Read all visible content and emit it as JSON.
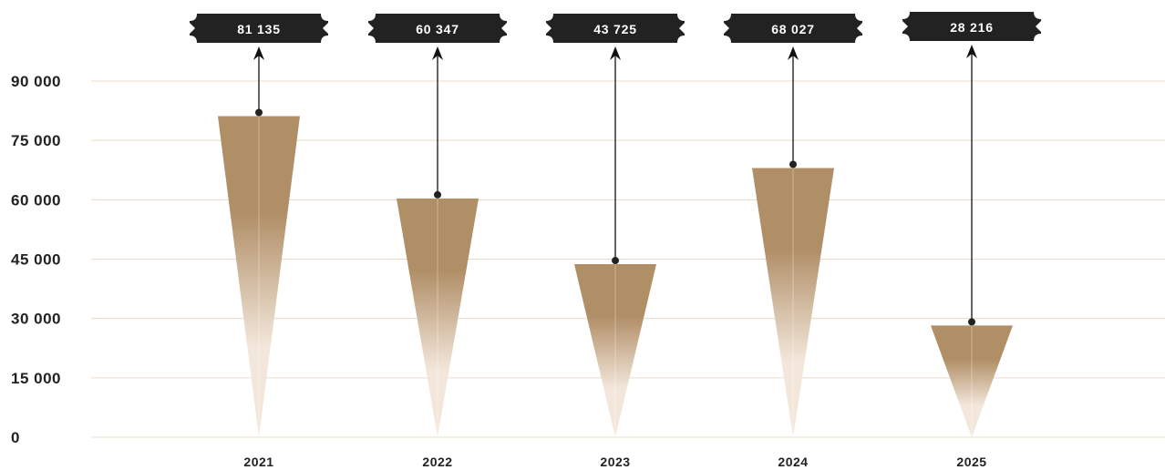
{
  "chart_data": {
    "type": "bar",
    "categories": [
      "2021",
      "2022",
      "2023",
      "2024",
      "2025"
    ],
    "values": [
      81135,
      60347,
      43725,
      68027,
      28216
    ],
    "data_labels": [
      "81 135",
      "60 347",
      "43 725",
      "68 027",
      "28 216"
    ],
    "ylim": [
      0,
      90000
    ],
    "yticks": [
      0,
      15000,
      30000,
      45000,
      60000,
      75000,
      90000
    ],
    "ytick_labels": [
      "0",
      "15 000",
      "30 000",
      "45 000",
      "60 000",
      "75 000",
      "90 000"
    ],
    "grid": true,
    "bar_shape": "inverted-triangle",
    "colors": {
      "bar_top": "#b08e66",
      "bar_bottom": "#f3e7db",
      "grid": "#e8dcc8",
      "label_bg": "#222222",
      "label_text": "#ffffff",
      "axis_text": "#222222"
    }
  }
}
